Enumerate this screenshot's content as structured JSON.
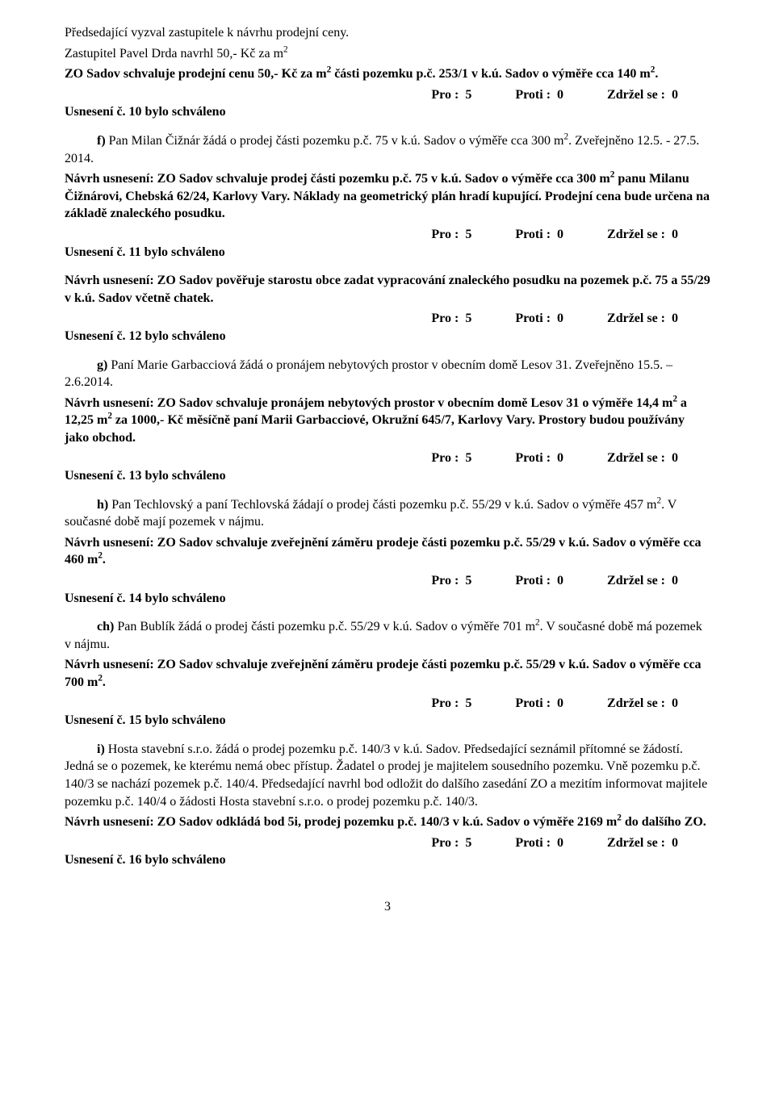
{
  "vote": {
    "pro_label": "Pro :",
    "pro_val": "5",
    "proti_label": "Proti :",
    "proti_val": "0",
    "zdrzel_label": "Zdržel se :",
    "zdrzel_val": "0"
  },
  "s1": {
    "p1": "Předsedající vyzval zastupitele k návrhu prodejní ceny.",
    "p2a": "Zastupitel Pavel Drda navrhl 50,- Kč za m",
    "p2b": "2",
    "p3a": "ZO Sadov schvaluje prodejní cenu 50,- Kč za m",
    "p3b": "2",
    "p3c": " části pozemku p.č. 253/1 v k.ú. Sadov o výměře cca 140 m",
    "p3d": "2",
    "p3e": ".",
    "res": "Usnesení č. 10 bylo schváleno"
  },
  "s2": {
    "p1a": "f) ",
    "p1b": "Pan Milan Čižnár žádá o prodej části pozemku p.č. 75 v k.ú. Sadov o výměře cca 300 m",
    "p1c": "2",
    "p1d": ". Zveřejněno 12.5. - 27.5. 2014.",
    "p2a": "Návrh usnesení: ZO Sadov schvaluje prodej části pozemku p.č. 75 v k.ú. Sadov o výměře cca 300 m",
    "p2b": "2",
    "p2c": " panu Milanu Čižnárovi, Chebská 62/24, Karlovy Vary. Náklady na geometrický plán hradí kupující. Prodejní cena bude určena na základě znaleckého posudku.",
    "res": "Usnesení č. 11 bylo schváleno"
  },
  "s3": {
    "p1": "Návrh usnesení: ZO Sadov pověřuje starostu obce zadat vypracování znaleckého posudku na pozemek p.č. 75 a 55/29 v k.ú. Sadov včetně chatek.",
    "res": "Usnesení č. 12 bylo schváleno"
  },
  "s4": {
    "p1a": "g) ",
    "p1b": "Paní Marie Garbacciová žádá o pronájem nebytových prostor v obecním domě Lesov 31. Zveřejněno 15.5. – 2.6.2014.",
    "p2a": "Návrh usnesení: ZO Sadov schvaluje pronájem nebytových prostor v obecním domě Lesov 31 o výměře 14,4 m",
    "p2b": "2",
    "p2c": " a 12,25 m",
    "p2d": "2",
    "p2e": " za 1000,- Kč měsíčně paní Marii Garbacciové, Okružní 645/7, Karlovy Vary. Prostory budou používány jako obchod.",
    "res": "Usnesení č. 13 bylo schváleno"
  },
  "s5": {
    "p1a": "h) ",
    "p1b": "Pan Techlovský a paní Techlovská žádají o prodej části pozemku p.č. 55/29 v k.ú. Sadov o výměře 457 m",
    "p1c": "2",
    "p1d": ". V současné době mají pozemek v nájmu.",
    "p2a": "Návrh usnesení: ZO Sadov schvaluje zveřejnění záměru prodeje části pozemku p.č. 55/29 v k.ú. Sadov o výměře cca 460 m",
    "p2b": "2",
    "p2c": ".",
    "res": "Usnesení č. 14 bylo schváleno"
  },
  "s6": {
    "p1a": "ch) ",
    "p1b": "Pan Bublík žádá o prodej části pozemku p.č. 55/29 v k.ú. Sadov o výměře 701 m",
    "p1c": "2",
    "p1d": ". V současné době má pozemek v nájmu.",
    "p2a": "Návrh usnesení: ZO Sadov schvaluje zveřejnění záměru prodeje části pozemku p.č. 55/29 v k.ú. Sadov o výměře cca 700 m",
    "p2b": "2",
    "p2c": ".",
    "res": "Usnesení č. 15 bylo schváleno"
  },
  "s7": {
    "p1a": "i) ",
    "p1b": "Hosta stavební s.r.o. žádá o prodej pozemku p.č. 140/3 v k.ú. Sadov. Předsedající seznámil přítomné se žádostí. Jedná se o pozemek, ke kterému nemá obec přístup. Žadatel o prodej je majitelem sousedního pozemku. Vně pozemku p.č. 140/3 se nachází pozemek p.č. 140/4. Předsedající navrhl bod odložit do dalšího zasedání ZO a mezitím informovat majitele pozemku p.č. 140/4 o žádosti Hosta stavební s.r.o. o prodej pozemku p.č. 140/3.",
    "p2a": "Návrh usnesení: ZO Sadov odkládá bod 5i, prodej pozemku p.č. 140/3 v k.ú. Sadov o výměře 2169 m",
    "p2b": "2",
    "p2c": " do dalšího ZO.",
    "res": "Usnesení č. 16 bylo schváleno"
  },
  "page_number": "3"
}
